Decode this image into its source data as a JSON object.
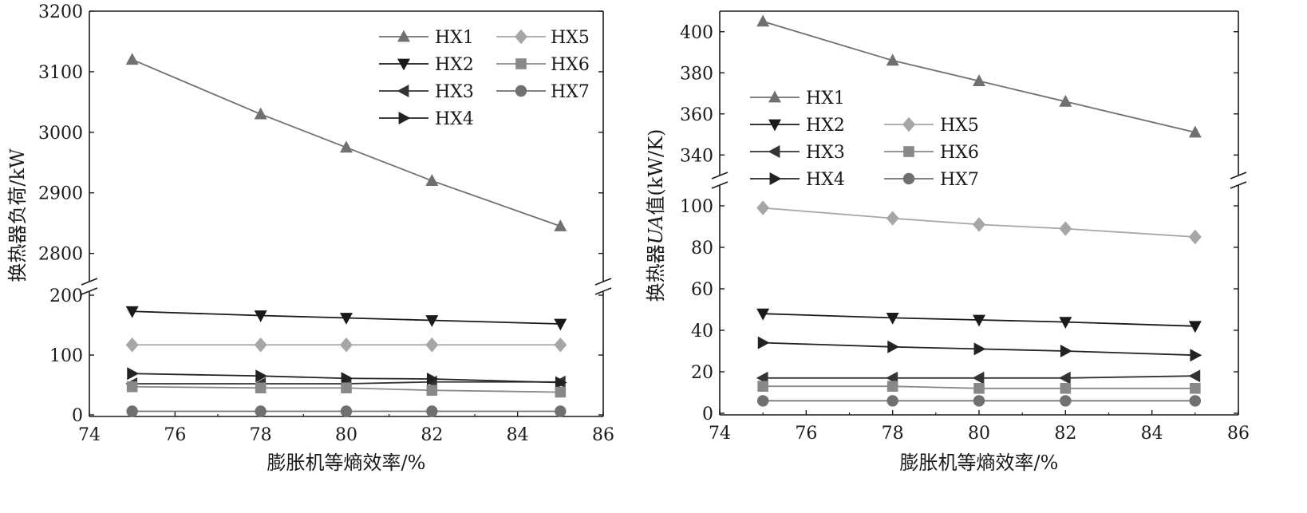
{
  "chart_data": [
    {
      "type": "line",
      "xlabel": "膨胀机等熵效率/%",
      "ylabel": "换热器负荷/kW",
      "xlim": [
        74,
        86
      ],
      "xticks": [
        74,
        76,
        78,
        80,
        82,
        84,
        86
      ],
      "broken_y_axis": true,
      "upper_ylim": [
        2760,
        3200
      ],
      "upper_yticks": [
        2800,
        2900,
        3000,
        3100,
        3200
      ],
      "lower_ylim": [
        0,
        200
      ],
      "lower_yticks": [
        0,
        100,
        200
      ],
      "x": [
        75,
        78,
        80,
        82,
        85
      ],
      "legend": "top-right, two columns",
      "series": [
        {
          "name": "HX1",
          "marker": "triangle-up",
          "color": "#707070",
          "segment": "upper",
          "values": [
            3120,
            3030,
            2975,
            2920,
            2845
          ]
        },
        {
          "name": "HX2",
          "marker": "triangle-down",
          "color": "#1a1a1a",
          "segment": "lower",
          "values": [
            173,
            166,
            162,
            158,
            152
          ]
        },
        {
          "name": "HX3",
          "marker": "triangle-left",
          "color": "#333333",
          "segment": "lower",
          "values": [
            52,
            52,
            52,
            55,
            55
          ]
        },
        {
          "name": "HX4",
          "marker": "triangle-right",
          "color": "#222222",
          "segment": "lower",
          "values": [
            69,
            65,
            61,
            60,
            54
          ]
        },
        {
          "name": "HX5",
          "marker": "diamond",
          "color": "#a6a6a6",
          "segment": "lower",
          "values": [
            117,
            117,
            117,
            117,
            117
          ]
        },
        {
          "name": "HX6",
          "marker": "square",
          "color": "#888888",
          "segment": "lower",
          "values": [
            47,
            45,
            45,
            41,
            38
          ]
        },
        {
          "name": "HX7",
          "marker": "circle",
          "color": "#707070",
          "segment": "lower",
          "values": [
            6,
            6,
            6,
            6,
            6
          ]
        }
      ]
    },
    {
      "type": "line",
      "xlabel": "膨胀机等熵效率/%",
      "ylabel": "换热器UA值(kW/K)",
      "ylabel_parts": [
        "换热器",
        "UA",
        "值(kW/K)"
      ],
      "xlim": [
        74,
        86
      ],
      "xticks": [
        74,
        76,
        78,
        80,
        82,
        84,
        86
      ],
      "broken_y_axis": true,
      "upper_ylim": [
        330,
        410
      ],
      "upper_yticks": [
        340,
        360,
        380,
        400
      ],
      "lower_ylim": [
        0,
        110
      ],
      "lower_yticks": [
        0,
        20,
        40,
        60,
        80,
        100
      ],
      "x": [
        75,
        78,
        80,
        82,
        85
      ],
      "legend": "middle-left, two columns",
      "series": [
        {
          "name": "HX1",
          "marker": "triangle-up",
          "color": "#707070",
          "segment": "upper",
          "values": [
            405,
            386,
            376,
            366,
            351
          ]
        },
        {
          "name": "HX2",
          "marker": "triangle-down",
          "color": "#1a1a1a",
          "segment": "lower",
          "values": [
            48,
            46,
            45,
            44,
            42
          ]
        },
        {
          "name": "HX3",
          "marker": "triangle-left",
          "color": "#333333",
          "segment": "lower",
          "values": [
            17,
            17,
            17,
            17,
            18
          ]
        },
        {
          "name": "HX4",
          "marker": "triangle-right",
          "color": "#222222",
          "segment": "lower",
          "values": [
            34,
            32,
            31,
            30,
            28
          ]
        },
        {
          "name": "HX5",
          "marker": "diamond",
          "color": "#a6a6a6",
          "segment": "lower",
          "values": [
            99,
            94,
            91,
            89,
            85
          ]
        },
        {
          "name": "HX6",
          "marker": "square",
          "color": "#888888",
          "segment": "lower",
          "values": [
            13,
            13,
            12,
            12,
            12
          ]
        },
        {
          "name": "HX7",
          "marker": "circle",
          "color": "#707070",
          "segment": "lower",
          "values": [
            6,
            6,
            6,
            6,
            6
          ]
        }
      ]
    }
  ]
}
